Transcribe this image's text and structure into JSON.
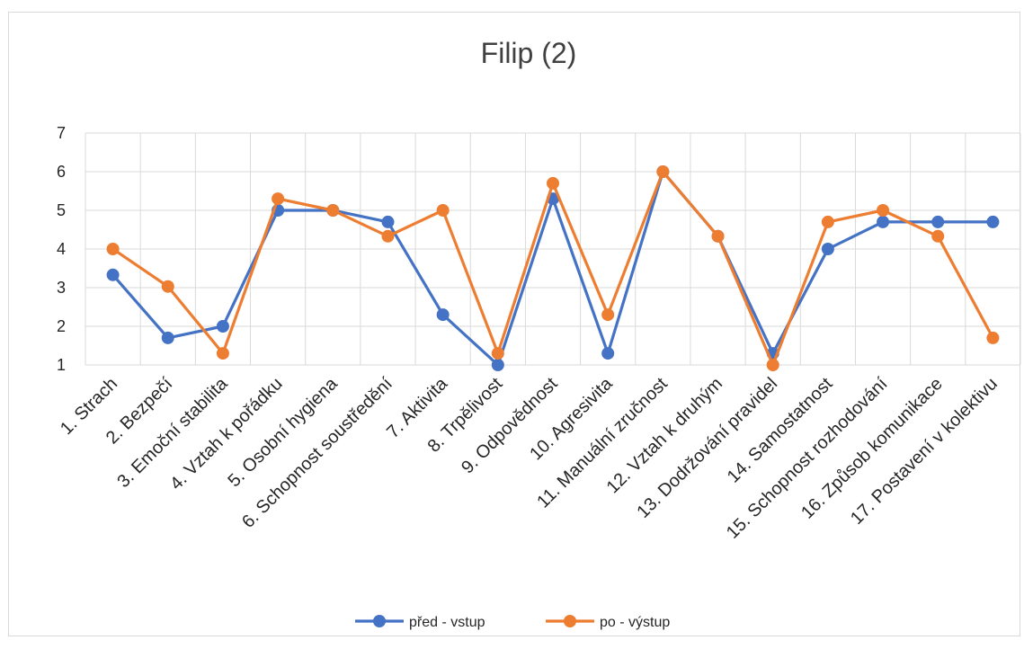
{
  "chart_data": {
    "type": "line",
    "title": "Filip (2)",
    "xlabel": "",
    "ylabel": "",
    "ylim": [
      1,
      7
    ],
    "yticks": [
      1,
      2,
      3,
      4,
      5,
      6,
      7
    ],
    "grid": true,
    "legend_position": "bottom",
    "categories": [
      "1.     Strach",
      "2.     Bezpečí",
      "3.     Emoční stabilita",
      "4.     Vztah k pořádku",
      "5.     Osobní hygiena",
      "6.     Schopnost soustředění",
      "7.     Aktivita",
      "8.     Trpělivost",
      "9.     Odpovědnost",
      "10. Agresivita",
      "11. Manuální zručnost",
      "12. Vztah k druhým",
      "13. Dodržování pravidel",
      "14. Samostatnost",
      "15. Schopnost rozhodování",
      "16. Způsob komunikace",
      "17. Postavení v kolektivu"
    ],
    "series": [
      {
        "name": "před - vstup",
        "color": "#4472c4",
        "values": [
          3.33,
          1.7,
          2.0,
          5.0,
          5.0,
          4.7,
          2.3,
          1.0,
          5.3,
          1.3,
          6.0,
          4.33,
          1.3,
          4.0,
          4.7,
          4.7,
          4.7
        ]
      },
      {
        "name": "po - výstup",
        "color": "#ed7d31",
        "values": [
          4.0,
          3.03,
          1.3,
          5.3,
          5.0,
          4.33,
          5.0,
          1.3,
          5.7,
          2.3,
          6.0,
          4.33,
          1.0,
          4.7,
          5.0,
          4.33,
          1.7
        ]
      }
    ]
  }
}
